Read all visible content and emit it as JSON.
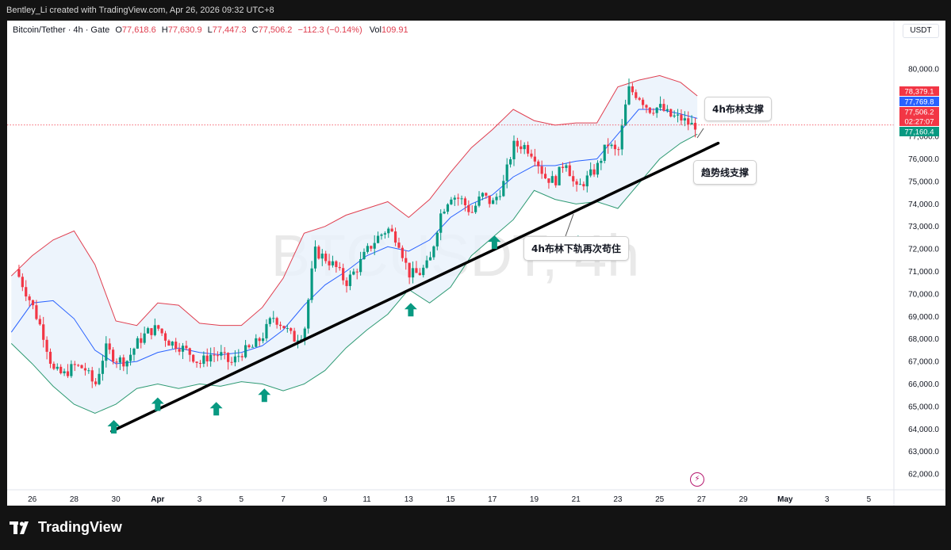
{
  "header": {
    "credit": "Bentley_Li created with TradingView.com, Apr 26, 2026 09:32 UTC+8"
  },
  "legend": {
    "symbol": "Bitcoin/Tether · 4h · Gate",
    "open_label": "O",
    "open": "77,618.6",
    "high_label": "H",
    "high": "77,630.9",
    "low_label": "L",
    "low": "77,447.3",
    "close_label": "C",
    "close": "77,506.2",
    "change": "−112.3 (−0.14%)",
    "vol_label": "Vol",
    "vol": "109.91"
  },
  "unit_label": "USDT",
  "watermark": "BTCUSDT, 4h",
  "brand": {
    "name": "TradingView"
  },
  "callouts": {
    "bollinger_support": "4h布林支撑",
    "trendline_support": "趋势线支撑",
    "lower_band_hold": "4h布林下轨再次苟住"
  },
  "colors": {
    "up": "#089981",
    "down": "#f23645",
    "upper_band": "#e03e4f",
    "lower_band": "#2e9a73",
    "mid_band": "#2962ff",
    "band_fill": "#e8f1fb",
    "trendline": "#000000",
    "arrow": "#089981"
  },
  "chart_data": {
    "type": "line",
    "title": "Bitcoin/Tether · 4h · Gate",
    "xlabel": "",
    "ylabel": "",
    "ylim": [
      61300,
      81300
    ],
    "y_ticks": [
      "80,000.0",
      "79,000.0",
      "78,000.0",
      "77,000.0",
      "76,000.0",
      "75,000.0",
      "74,000.0",
      "73,000.0",
      "72,000.0",
      "71,000.0",
      "70,000.0",
      "69,000.0",
      "68,000.0",
      "67,000.0",
      "66,000.0",
      "65,000.0",
      "64,000.0",
      "63,000.0",
      "62,000.0"
    ],
    "y_tick_values": [
      80000,
      79000,
      78000,
      77000,
      76000,
      75000,
      74000,
      73000,
      72000,
      71000,
      70000,
      69000,
      68000,
      67000,
      66000,
      65000,
      64000,
      63000,
      62000
    ],
    "x_ticks": [
      "26",
      "28",
      "30",
      "Apr",
      "3",
      "5",
      "7",
      "9",
      "11",
      "13",
      "15",
      "17",
      "19",
      "21",
      "23",
      "25",
      "27",
      "29",
      "May",
      "3",
      "5"
    ],
    "x_tick_days": [
      -6,
      -4,
      -2,
      0,
      2,
      4,
      6,
      8,
      10,
      12,
      14,
      16,
      18,
      20,
      22,
      24,
      26,
      28,
      30,
      32,
      34
    ],
    "price_tags": [
      {
        "label": "78,379.1",
        "value": 78379.1,
        "color": "#f23645"
      },
      {
        "label": "77,769.8",
        "value": 77769.8,
        "color": "#2962ff"
      },
      {
        "label": "77,506.2",
        "value": 77506.2,
        "color": "#f23645"
      },
      {
        "label": "02:27:07",
        "value": 77506.2,
        "color": "#f23645"
      },
      {
        "label": "77,160.4",
        "value": 77160.4,
        "color": "#089981"
      }
    ],
    "last_price": 77506.2,
    "close_series": {
      "days": [
        -6.8,
        -6,
        -5.5,
        -5,
        -4.5,
        -4,
        -3.5,
        -3,
        -2.5,
        -2,
        -1.5,
        -1,
        -0.5,
        0,
        0.5,
        1,
        1.5,
        2,
        2.5,
        3,
        3.5,
        4,
        4.5,
        5,
        5.5,
        6,
        6.5,
        7,
        7.5,
        8,
        8.5,
        9,
        9.5,
        10,
        10.5,
        11,
        11.5,
        12,
        12.5,
        13,
        13.5,
        14,
        14.5,
        15,
        15.5,
        16,
        16.5,
        17,
        17.5,
        18,
        18.5,
        19,
        19.5,
        20,
        20.5,
        21,
        21.5,
        22,
        22.5,
        23,
        23.5,
        24,
        24.5,
        25,
        25.5,
        25.8
      ],
      "values": [
        71100,
        69500,
        68300,
        66600,
        66400,
        66800,
        66700,
        65900,
        67600,
        67100,
        67000,
        67800,
        68300,
        68500,
        67900,
        67700,
        67400,
        66900,
        67300,
        67300,
        66900,
        67400,
        67600,
        68100,
        69000,
        68600,
        68000,
        68300,
        71900,
        71600,
        71200,
        70500,
        71100,
        71900,
        72500,
        72900,
        72400,
        70900,
        70900,
        71400,
        73500,
        74400,
        74200,
        73600,
        74400,
        74000,
        74800,
        76600,
        76600,
        76200,
        75200,
        75000,
        76000,
        74600,
        75100,
        75600,
        76700,
        76200,
        79100,
        78800,
        78200,
        78300,
        77900,
        77800,
        77500,
        77506
      ]
    },
    "series": [
      {
        "name": "upper_band",
        "days": [
          -7,
          -6,
          -5,
          -4,
          -3,
          -2,
          -1,
          0,
          1,
          2,
          3,
          4,
          5,
          6,
          7,
          8,
          9,
          10,
          11,
          12,
          13,
          14,
          15,
          16,
          17,
          18,
          19,
          20,
          21,
          22,
          23,
          24,
          25,
          25.8
        ],
        "values": [
          70800,
          71700,
          72400,
          72800,
          71300,
          68800,
          68600,
          69600,
          69500,
          68700,
          68600,
          68600,
          69400,
          70700,
          72700,
          73000,
          73500,
          73800,
          74100,
          73400,
          74200,
          75400,
          76500,
          77300,
          78200,
          77700,
          77500,
          77600,
          77600,
          79200,
          79500,
          79700,
          79400,
          78800
        ]
      },
      {
        "name": "mid_band",
        "days": [
          -7,
          -6,
          -5,
          -4,
          -3,
          -2,
          -1,
          0,
          1,
          2,
          3,
          4,
          5,
          6,
          7,
          8,
          9,
          10,
          11,
          12,
          13,
          14,
          15,
          16,
          17,
          18,
          19,
          20,
          21,
          22,
          23,
          24,
          25,
          25.8
        ],
        "values": [
          68300,
          69600,
          69700,
          68900,
          67500,
          66900,
          67000,
          67400,
          67600,
          67400,
          67300,
          67400,
          67700,
          68400,
          69500,
          70400,
          71000,
          71700,
          72100,
          71900,
          72400,
          73400,
          74000,
          74400,
          75200,
          75700,
          75700,
          75900,
          76000,
          77100,
          78200,
          78200,
          78000,
          77800
        ]
      },
      {
        "name": "lower_band",
        "days": [
          -7,
          -6,
          -5,
          -4,
          -3,
          -2,
          -1,
          0,
          1,
          2,
          3,
          4,
          5,
          6,
          7,
          8,
          9,
          10,
          11,
          12,
          13,
          14,
          15,
          16,
          17,
          18,
          19,
          20,
          21,
          22,
          23,
          24,
          25,
          25.8
        ],
        "values": [
          67800,
          66900,
          65900,
          65100,
          64700,
          65100,
          65800,
          66000,
          65800,
          66000,
          65900,
          66100,
          66000,
          65700,
          66000,
          66600,
          67600,
          68400,
          69100,
          70200,
          69600,
          70300,
          71700,
          72500,
          73300,
          74600,
          74200,
          74000,
          74100,
          73800,
          74900,
          76000,
          76700,
          77100
        ]
      }
    ],
    "trendline": {
      "start": {
        "day": -2.2,
        "value": 63900
      },
      "end": {
        "day": 26.8,
        "value": 76700
      }
    },
    "arrows_days": [
      -2.1,
      0,
      2.8,
      5.1,
      12.1,
      16.1,
      20.1
    ],
    "arrows_values": [
      64400,
      65400,
      65200,
      65800,
      69600,
      72600,
      72600
    ],
    "grid": false,
    "legend_position": "top-left"
  }
}
